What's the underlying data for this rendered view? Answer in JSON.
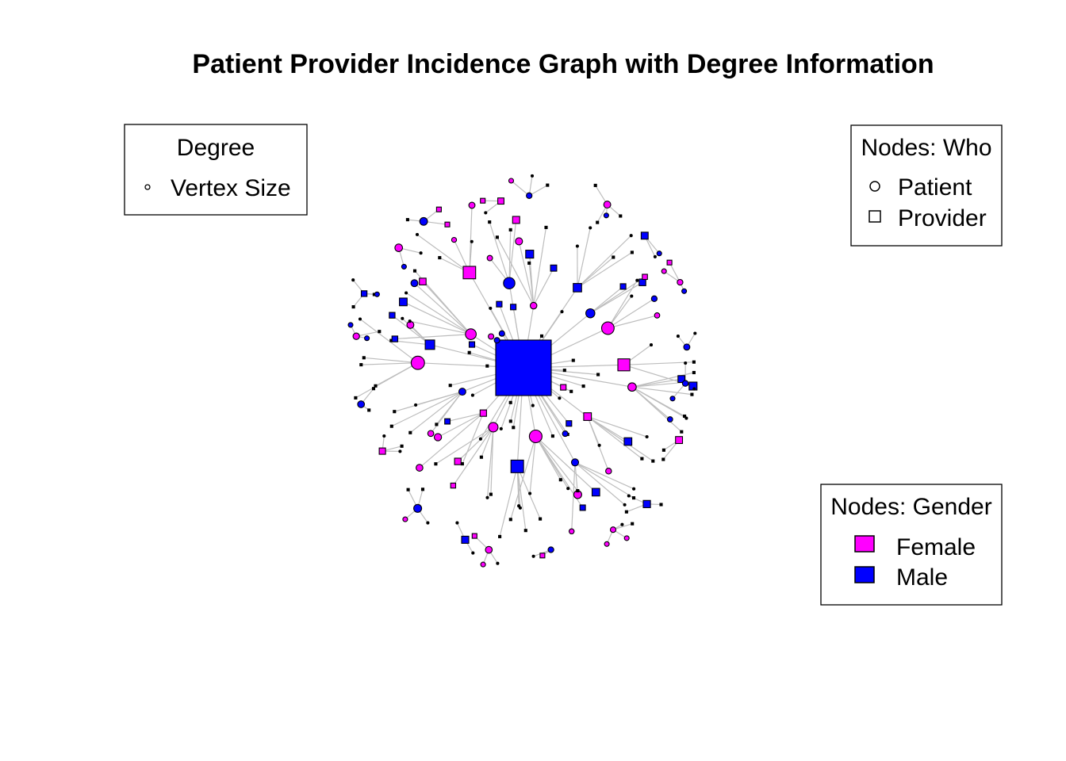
{
  "title": "Patient Provider Incidence Graph with Degree Information",
  "legends": {
    "degree": {
      "heading": "Degree",
      "item": "Vertex Size"
    },
    "who": {
      "heading": "Nodes: Who",
      "items": [
        "Patient",
        "Provider"
      ]
    },
    "gender": {
      "heading": "Nodes: Gender",
      "items": [
        "Female",
        "Male"
      ]
    }
  },
  "colors": {
    "female": "#ff00ff",
    "male": "#0000ff",
    "edge": "#bdbdbd"
  },
  "graph": {
    "hub": {
      "shape": "square",
      "gender": "male"
    },
    "secondary": [
      {
        "shape": "circle",
        "gender": "female",
        "children": 8
      },
      {
        "shape": "square",
        "gender": "female",
        "children": 6
      },
      {
        "shape": "circle",
        "gender": "male",
        "children": 5
      },
      {
        "shape": "circle",
        "gender": "female",
        "children": 7
      },
      {
        "shape": "square",
        "gender": "male",
        "children": 5
      },
      {
        "shape": "circle",
        "gender": "female",
        "children": 6
      },
      {
        "shape": "square",
        "gender": "female",
        "children": 4
      },
      {
        "shape": "circle",
        "gender": "male",
        "children": 6
      },
      {
        "shape": "circle",
        "gender": "female",
        "children": 5
      },
      {
        "shape": "square",
        "gender": "male",
        "children": 4
      },
      {
        "shape": "circle",
        "gender": "female",
        "children": 7
      },
      {
        "shape": "square",
        "gender": "female",
        "children": 5
      },
      {
        "shape": "circle",
        "gender": "male",
        "children": 4
      },
      {
        "shape": "circle",
        "gender": "female",
        "children": 6
      },
      {
        "shape": "square",
        "gender": "male",
        "children": 5
      },
      {
        "shape": "circle",
        "gender": "male",
        "children": 3
      },
      {
        "shape": "circle",
        "gender": "female",
        "children": 4
      },
      {
        "shape": "square",
        "gender": "female",
        "children": 3
      }
    ],
    "components": [
      {
        "gender": "male",
        "shape": "circle",
        "children": 3
      },
      {
        "gender": "female",
        "shape": "square",
        "children": 2
      },
      {
        "gender": "male",
        "shape": "square",
        "children": 3
      },
      {
        "gender": "female",
        "shape": "circle",
        "children": 4
      },
      {
        "gender": "male",
        "shape": "circle",
        "children": 2
      },
      {
        "gender": "female",
        "shape": "circle",
        "children": 3
      },
      {
        "gender": "male",
        "shape": "square",
        "children": 2
      },
      {
        "gender": "male",
        "shape": "circle",
        "children": 4
      },
      {
        "gender": "female",
        "shape": "square",
        "children": 3
      },
      {
        "gender": "male",
        "shape": "circle",
        "children": 2
      },
      {
        "gender": "female",
        "shape": "circle",
        "children": 3
      },
      {
        "gender": "male",
        "shape": "square",
        "children": 4
      },
      {
        "gender": "female",
        "shape": "circle",
        "children": 2
      },
      {
        "gender": "male",
        "shape": "circle",
        "children": 3
      },
      {
        "gender": "female",
        "shape": "square",
        "children": 2
      },
      {
        "gender": "male",
        "shape": "circle",
        "children": 3
      },
      {
        "gender": "female",
        "shape": "circle",
        "children": 4
      },
      {
        "gender": "male",
        "shape": "square",
        "children": 2
      },
      {
        "gender": "female",
        "shape": "circle",
        "children": 3
      },
      {
        "gender": "male",
        "shape": "circle",
        "children": 2
      }
    ]
  }
}
